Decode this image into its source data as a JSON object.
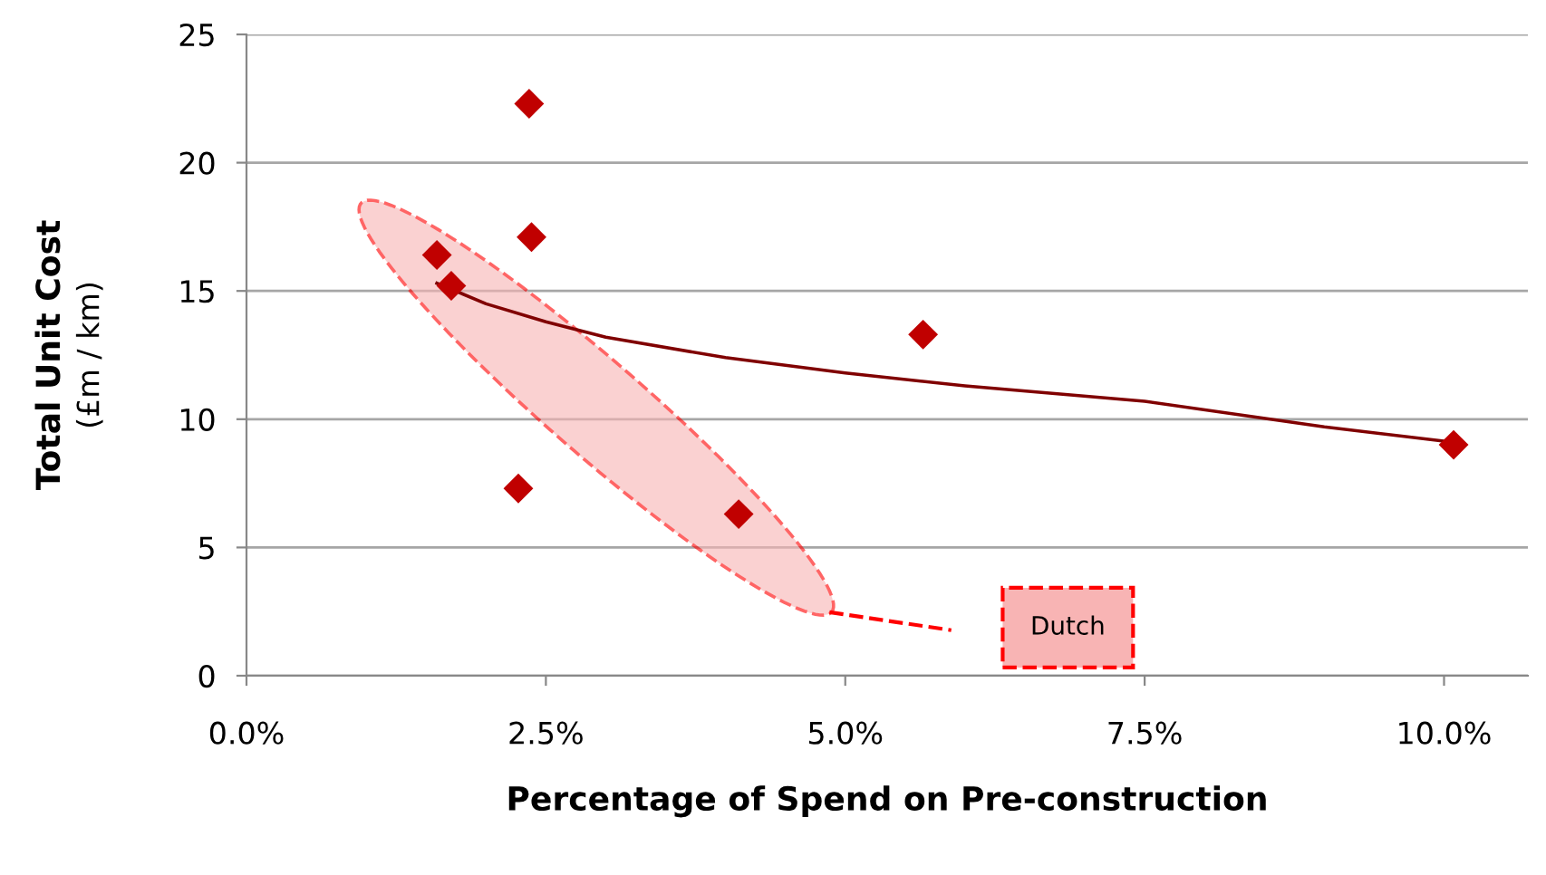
{
  "chart_data": {
    "type": "scatter",
    "xlabel": "Percentage of Spend on Pre-construction",
    "ylabel": "Total Unit Cost\n(£m / km)",
    "xlim": [
      0,
      10.7
    ],
    "xticks": [
      {
        "value": 0,
        "label": "0.0%"
      },
      {
        "value": 2.5,
        "label": "2.5%"
      },
      {
        "value": 5,
        "label": "5.0%"
      },
      {
        "value": 7.5,
        "label": "7.5%"
      },
      {
        "value": 10,
        "label": "10.0%"
      }
    ],
    "ylim": [
      0,
      25
    ],
    "yticks": [
      0,
      5,
      10,
      15,
      20,
      25
    ],
    "grid": "y",
    "annotations": [
      "Dutch"
    ],
    "series": [
      {
        "color": "#c00000",
        "marker": "diamond",
        "x": [
          1.59,
          1.71,
          2.36,
          2.38,
          2.27,
          4.11,
          5.65,
          10.08
        ],
        "values": [
          16.4,
          15.2,
          22.3,
          17.1,
          7.3,
          6.3,
          13.3,
          9.0
        ]
      },
      {
        "type": "line",
        "color": "#800000",
        "x": [
          1.59,
          2.0,
          2.5,
          3.0,
          4.0,
          5.0,
          6.0,
          7.5,
          9.0,
          10.08
        ],
        "values": [
          15.3,
          14.5,
          13.8,
          13.2,
          12.4,
          11.8,
          11.3,
          10.7,
          9.7,
          9.1
        ]
      }
    ]
  }
}
